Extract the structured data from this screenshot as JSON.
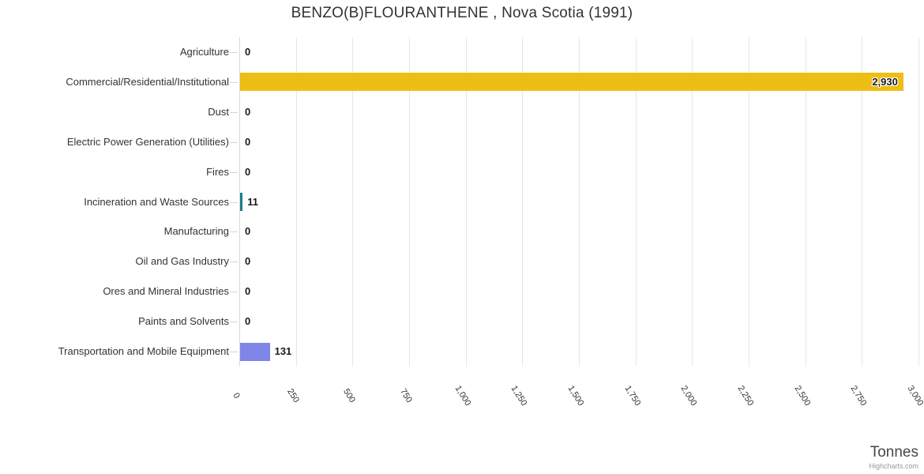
{
  "chart_data": {
    "type": "bar",
    "orientation": "horizontal",
    "title": "BENZO(B)FLOURANTHENE , Nova Scotia (1991)",
    "categories": [
      "Agriculture",
      "Commercial/Residential/Institutional",
      "Dust",
      "Electric Power Generation (Utilities)",
      "Fires",
      "Incineration and Waste Sources",
      "Manufacturing",
      "Oil and Gas Industry",
      "Ores and Mineral Industries",
      "Paints and Solvents",
      "Transportation and Mobile Equipment"
    ],
    "values": [
      0,
      2930,
      0,
      0,
      0,
      11,
      0,
      0,
      0,
      0,
      131
    ],
    "value_labels": [
      "0",
      "2,930",
      "0",
      "0",
      "0",
      "11",
      "0",
      "0",
      "0",
      "0",
      "131"
    ],
    "point_colors": [
      null,
      "#edbe14",
      null,
      null,
      null,
      "#1a7d8c",
      null,
      null,
      null,
      null,
      "#8086e8"
    ],
    "xlabel": "Tonnes",
    "xlim": [
      0,
      3000
    ],
    "x_ticks": [
      0,
      250,
      500,
      750,
      1000,
      1250,
      1500,
      1750,
      2000,
      2250,
      2500,
      2750,
      3000
    ],
    "x_tick_labels": [
      "0",
      "250",
      "500",
      "750",
      "1,000",
      "1,250",
      "1,500",
      "1,750",
      "2,000",
      "2,250",
      "2,500",
      "2,750",
      "3,000"
    ],
    "grid": true,
    "legend": "none",
    "credit": "Highcharts.com"
  },
  "colors": {
    "grid": "#e6e6e6",
    "axis_tick": "#ccd6eb",
    "title_text": "#333333",
    "category_text": "#333333",
    "data_label_text": "#1a1a1a",
    "axis_title_text": "#45454d",
    "credit_text": "#999999",
    "background": "#ffffff"
  }
}
